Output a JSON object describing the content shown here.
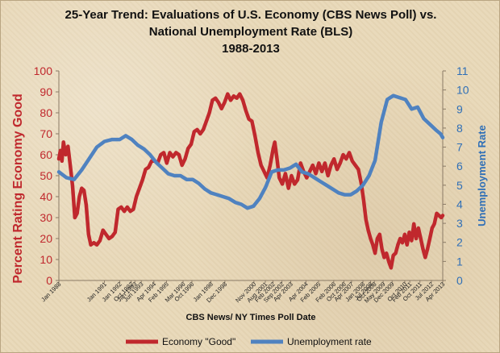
{
  "chart_data": {
    "type": "line",
    "title_lines": [
      "25-Year Trend: Evaluations of U.S. Economy (CBS News Poll) vs.",
      "National Unemployment Rate (BLS)",
      "1988-2013"
    ],
    "xlabel": "CBS News/ NY Times Poll Date",
    "ylabel_left": "Percent Rating Economy Good",
    "ylabel_right": "Unemployment Rate",
    "ylim_left": [
      0,
      100
    ],
    "ylim_right": [
      0,
      11
    ],
    "yticks_left": [
      0,
      10,
      20,
      30,
      40,
      50,
      60,
      70,
      80,
      90,
      100
    ],
    "yticks_right": [
      0,
      1,
      2,
      3,
      4,
      5,
      6,
      7,
      8,
      9,
      10,
      11
    ],
    "xlim": [
      1988.0,
      2013.25
    ],
    "x_tick_labels": [
      {
        "x": 1988.0,
        "label": "Jan 1988"
      },
      {
        "x": 1991.0,
        "label": "Jan 1991"
      },
      {
        "x": 1992.0,
        "label": "Jan 1992"
      },
      {
        "x": 1992.75,
        "label": "Oct 1992"
      },
      {
        "x": 1993.0,
        "label": "Jan 1993"
      },
      {
        "x": 1993.42,
        "label": "Jun 1993"
      },
      {
        "x": 1994.25,
        "label": "Apr 1994"
      },
      {
        "x": 1995.08,
        "label": "Feb 1995"
      },
      {
        "x": 1996.17,
        "label": "Mar 1996"
      },
      {
        "x": 1996.75,
        "label": "Oct 1996"
      },
      {
        "x": 1998.0,
        "label": "Jan 1998"
      },
      {
        "x": 1998.92,
        "label": "Dec 1998"
      },
      {
        "x": 2000.83,
        "label": "Nov 2000"
      },
      {
        "x": 2001.58,
        "label": "Aug 2001"
      },
      {
        "x": 2002.08,
        "label": "Feb 2002"
      },
      {
        "x": 2002.67,
        "label": "Sep 2002"
      },
      {
        "x": 2003.25,
        "label": "Apr 2003"
      },
      {
        "x": 2004.25,
        "label": "Apr 2004"
      },
      {
        "x": 2005.08,
        "label": "Feb 2005"
      },
      {
        "x": 2006.08,
        "label": "Feb 2006"
      },
      {
        "x": 2006.75,
        "label": "Oct 2006"
      },
      {
        "x": 2007.25,
        "label": "Apr 2007"
      },
      {
        "x": 2008.0,
        "label": "Jan 2008"
      },
      {
        "x": 2008.5,
        "label": "Jul 2008"
      },
      {
        "x": 2008.75,
        "label": "Oct 2008"
      },
      {
        "x": 2009.33,
        "label": "May 2009"
      },
      {
        "x": 2009.92,
        "label": "Dec 2009"
      },
      {
        "x": 2010.75,
        "label": "Oct 2010"
      },
      {
        "x": 2011.08,
        "label": "Feb 2011"
      },
      {
        "x": 2011.75,
        "label": "Oct 2011"
      },
      {
        "x": 2012.5,
        "label": "Jul 2012"
      },
      {
        "x": 2013.25,
        "label": "Apr 2013"
      }
    ],
    "series": [
      {
        "name": "Economy \"Good\"",
        "axis": "left",
        "color": "#c0282d",
        "points": [
          [
            1988.0,
            58
          ],
          [
            1988.1,
            62
          ],
          [
            1988.2,
            57
          ],
          [
            1988.3,
            66
          ],
          [
            1988.45,
            60
          ],
          [
            1988.6,
            64
          ],
          [
            1988.75,
            55
          ],
          [
            1988.9,
            45
          ],
          [
            1989.05,
            30
          ],
          [
            1989.2,
            32
          ],
          [
            1989.35,
            40
          ],
          [
            1989.5,
            44
          ],
          [
            1989.65,
            43
          ],
          [
            1989.8,
            36
          ],
          [
            1989.95,
            22
          ],
          [
            1990.1,
            17
          ],
          [
            1990.3,
            18
          ],
          [
            1990.5,
            17
          ],
          [
            1990.7,
            19
          ],
          [
            1990.9,
            24
          ],
          [
            1991.1,
            22
          ],
          [
            1991.3,
            20
          ],
          [
            1991.5,
            21
          ],
          [
            1991.7,
            23
          ],
          [
            1991.9,
            34
          ],
          [
            1992.1,
            35
          ],
          [
            1992.3,
            33
          ],
          [
            1992.5,
            35
          ],
          [
            1992.7,
            33
          ],
          [
            1992.9,
            34
          ],
          [
            1993.1,
            40
          ],
          [
            1993.3,
            44
          ],
          [
            1993.5,
            48
          ],
          [
            1993.7,
            53
          ],
          [
            1993.9,
            54
          ],
          [
            1994.1,
            57
          ],
          [
            1994.3,
            57
          ],
          [
            1994.5,
            56
          ],
          [
            1994.7,
            60
          ],
          [
            1994.9,
            61
          ],
          [
            1995.1,
            56
          ],
          [
            1995.3,
            61
          ],
          [
            1995.5,
            59
          ],
          [
            1995.7,
            61
          ],
          [
            1995.9,
            60
          ],
          [
            1996.1,
            55
          ],
          [
            1996.3,
            58
          ],
          [
            1996.5,
            63
          ],
          [
            1996.7,
            65
          ],
          [
            1996.9,
            71
          ],
          [
            1997.1,
            72
          ],
          [
            1997.3,
            70
          ],
          [
            1997.5,
            72
          ],
          [
            1997.7,
            76
          ],
          [
            1997.9,
            80
          ],
          [
            1998.1,
            86
          ],
          [
            1998.3,
            87
          ],
          [
            1998.5,
            85
          ],
          [
            1998.7,
            82
          ],
          [
            1998.9,
            85
          ],
          [
            1999.1,
            89
          ],
          [
            1999.3,
            86
          ],
          [
            1999.5,
            88
          ],
          [
            1999.7,
            87
          ],
          [
            1999.9,
            89
          ],
          [
            2000.1,
            86
          ],
          [
            2000.3,
            81
          ],
          [
            2000.5,
            77
          ],
          [
            2000.7,
            76
          ],
          [
            2000.9,
            69
          ],
          [
            2001.1,
            61
          ],
          [
            2001.3,
            55
          ],
          [
            2001.5,
            52
          ],
          [
            2001.7,
            49
          ],
          [
            2001.9,
            55
          ],
          [
            2002.1,
            63
          ],
          [
            2002.2,
            66
          ],
          [
            2002.35,
            58
          ],
          [
            2002.5,
            49
          ],
          [
            2002.7,
            46
          ],
          [
            2002.9,
            51
          ],
          [
            2003.1,
            44
          ],
          [
            2003.3,
            50
          ],
          [
            2003.5,
            46
          ],
          [
            2003.7,
            48
          ],
          [
            2003.9,
            56
          ],
          [
            2004.1,
            52
          ],
          [
            2004.3,
            49
          ],
          [
            2004.5,
            52
          ],
          [
            2004.7,
            55
          ],
          [
            2004.9,
            51
          ],
          [
            2005.1,
            56
          ],
          [
            2005.3,
            52
          ],
          [
            2005.5,
            56
          ],
          [
            2005.7,
            50
          ],
          [
            2005.9,
            55
          ],
          [
            2006.1,
            58
          ],
          [
            2006.3,
            53
          ],
          [
            2006.5,
            56
          ],
          [
            2006.7,
            60
          ],
          [
            2006.9,
            58
          ],
          [
            2007.1,
            61
          ],
          [
            2007.3,
            57
          ],
          [
            2007.5,
            55
          ],
          [
            2007.7,
            53
          ],
          [
            2007.9,
            46
          ],
          [
            2008.05,
            38
          ],
          [
            2008.2,
            29
          ],
          [
            2008.35,
            24
          ],
          [
            2008.5,
            20
          ],
          [
            2008.65,
            17
          ],
          [
            2008.8,
            13
          ],
          [
            2008.95,
            20
          ],
          [
            2009.1,
            22
          ],
          [
            2009.25,
            15
          ],
          [
            2009.4,
            11
          ],
          [
            2009.55,
            13
          ],
          [
            2009.7,
            9
          ],
          [
            2009.85,
            6
          ],
          [
            2010.0,
            12
          ],
          [
            2010.15,
            13
          ],
          [
            2010.3,
            17
          ],
          [
            2010.45,
            20
          ],
          [
            2010.6,
            18
          ],
          [
            2010.75,
            22
          ],
          [
            2010.9,
            17
          ],
          [
            2011.05,
            23
          ],
          [
            2011.2,
            19
          ],
          [
            2011.35,
            27
          ],
          [
            2011.5,
            20
          ],
          [
            2011.65,
            25
          ],
          [
            2011.8,
            20
          ],
          [
            2011.95,
            15
          ],
          [
            2012.1,
            11
          ],
          [
            2012.25,
            15
          ],
          [
            2012.4,
            20
          ],
          [
            2012.55,
            25
          ],
          [
            2012.7,
            27
          ],
          [
            2012.85,
            32
          ],
          [
            2013.0,
            31
          ],
          [
            2013.15,
            30
          ],
          [
            2013.25,
            31
          ]
        ]
      },
      {
        "name": "Unemployment rate",
        "axis": "right",
        "color": "#4f82c0",
        "points": [
          [
            1988.0,
            5.7
          ],
          [
            1988.5,
            5.4
          ],
          [
            1989.0,
            5.3
          ],
          [
            1989.5,
            5.8
          ],
          [
            1990.0,
            6.4
          ],
          [
            1990.5,
            7.0
          ],
          [
            1991.0,
            7.3
          ],
          [
            1991.5,
            7.4
          ],
          [
            1992.0,
            7.4
          ],
          [
            1992.4,
            7.6
          ],
          [
            1992.8,
            7.4
          ],
          [
            1993.2,
            7.1
          ],
          [
            1993.6,
            6.9
          ],
          [
            1994.0,
            6.6
          ],
          [
            1994.4,
            6.2
          ],
          [
            1994.8,
            5.9
          ],
          [
            1995.2,
            5.6
          ],
          [
            1995.6,
            5.5
          ],
          [
            1996.0,
            5.5
          ],
          [
            1996.4,
            5.3
          ],
          [
            1996.8,
            5.3
          ],
          [
            1997.2,
            5.1
          ],
          [
            1997.6,
            4.8
          ],
          [
            1998.0,
            4.6
          ],
          [
            1998.4,
            4.5
          ],
          [
            1998.8,
            4.4
          ],
          [
            1999.2,
            4.3
          ],
          [
            1999.6,
            4.1
          ],
          [
            2000.0,
            4.0
          ],
          [
            2000.4,
            3.8
          ],
          [
            2000.8,
            3.9
          ],
          [
            2001.2,
            4.3
          ],
          [
            2001.6,
            4.9
          ],
          [
            2002.0,
            5.7
          ],
          [
            2002.4,
            5.8
          ],
          [
            2002.8,
            5.8
          ],
          [
            2003.2,
            5.9
          ],
          [
            2003.6,
            6.1
          ],
          [
            2004.0,
            5.7
          ],
          [
            2004.4,
            5.6
          ],
          [
            2004.8,
            5.4
          ],
          [
            2005.2,
            5.2
          ],
          [
            2005.6,
            5.0
          ],
          [
            2006.0,
            4.8
          ],
          [
            2006.4,
            4.6
          ],
          [
            2006.8,
            4.5
          ],
          [
            2007.2,
            4.5
          ],
          [
            2007.6,
            4.7
          ],
          [
            2008.0,
            5.0
          ],
          [
            2008.4,
            5.5
          ],
          [
            2008.8,
            6.3
          ],
          [
            2009.2,
            8.3
          ],
          [
            2009.6,
            9.5
          ],
          [
            2010.0,
            9.7
          ],
          [
            2010.4,
            9.6
          ],
          [
            2010.8,
            9.5
          ],
          [
            2011.2,
            9.0
          ],
          [
            2011.6,
            9.1
          ],
          [
            2012.0,
            8.5
          ],
          [
            2012.4,
            8.2
          ],
          [
            2012.8,
            7.9
          ],
          [
            2013.1,
            7.7
          ],
          [
            2013.25,
            7.5
          ]
        ]
      }
    ],
    "legend_position": "bottom",
    "grid": false
  }
}
